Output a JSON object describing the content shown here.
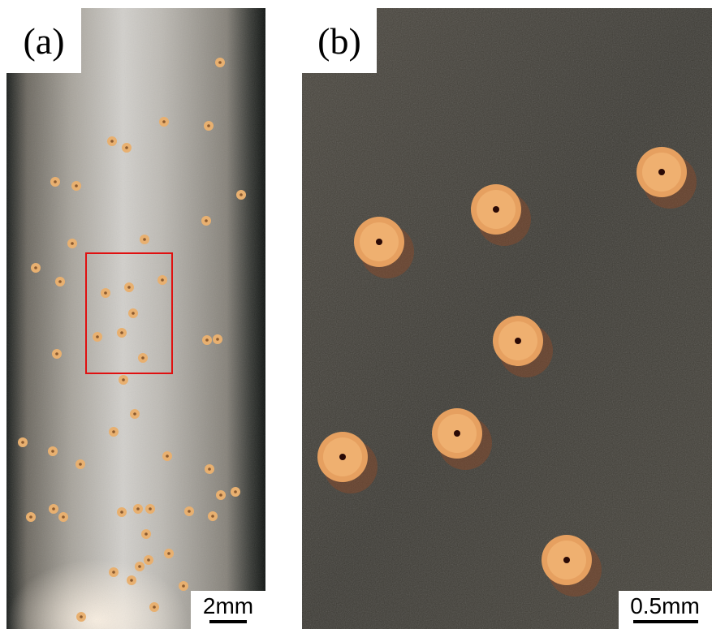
{
  "panels": [
    {
      "label": "(a)",
      "scale_bar": "2mm"
    },
    {
      "label": "(b)",
      "scale_bar": "0.5mm"
    }
  ]
}
